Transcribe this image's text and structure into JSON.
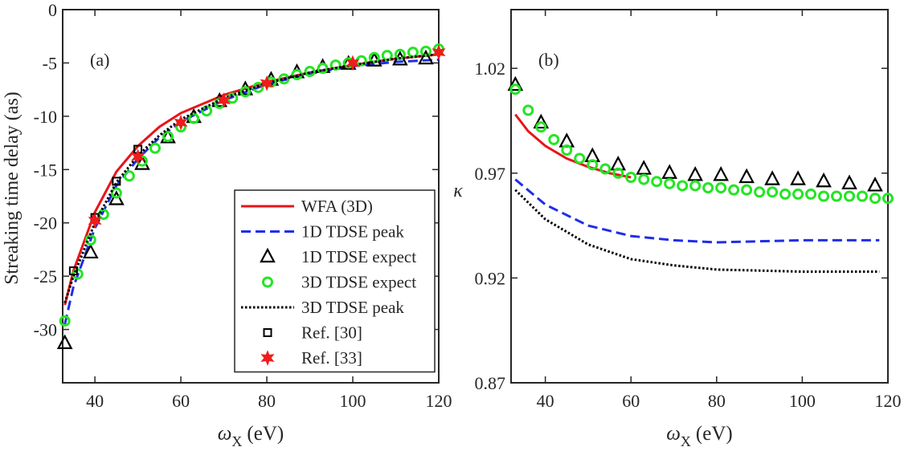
{
  "chart_data": [
    {
      "type": "line",
      "panel_label": "(a)",
      "y_label": "Streaking time delay (as)",
      "x_label_symbol": "ω",
      "x_label_subscript": "X",
      "x_label_unit": "(eV)",
      "xlim": [
        32.5,
        120
      ],
      "xticks": [
        40,
        60,
        80,
        100,
        120
      ],
      "ylim": [
        -35,
        0
      ],
      "yticks": [
        0,
        -5,
        -10,
        -15,
        -20,
        -25,
        -30
      ],
      "legend": "lower right",
      "series": [
        {
          "name": "WFA (3D)",
          "color": "#e8141b",
          "style": "solid",
          "x": [
            33,
            35,
            40,
            45,
            50,
            55,
            60,
            70,
            80,
            90,
            100,
            110,
            120
          ],
          "values": [
            -27.7,
            -24.5,
            -19.0,
            -15.2,
            -12.8,
            -11.0,
            -9.7,
            -8.0,
            -6.8,
            -5.9,
            -5.2,
            -4.6,
            -4.2
          ]
        },
        {
          "name": "1D TDSE peak",
          "color": "#1f2ee8",
          "style": "dashed",
          "x": [
            33,
            35,
            40,
            45,
            50,
            55,
            60,
            70,
            80,
            90,
            100,
            110,
            120
          ],
          "values": [
            -29.5,
            -26.0,
            -20.5,
            -16.5,
            -14.0,
            -12.0,
            -10.5,
            -8.5,
            -7.0,
            -6.0,
            -5.3,
            -4.9,
            -4.7
          ]
        },
        {
          "name": "1D TDSE expect",
          "color": "#000000",
          "style": "triangle",
          "x": [
            33,
            39,
            45,
            51,
            57,
            63,
            69,
            75,
            81,
            87,
            93,
            99,
            105,
            111,
            117
          ],
          "values": [
            -31.3,
            -22.8,
            -17.8,
            -14.5,
            -12.0,
            -10.1,
            -8.6,
            -7.5,
            -6.6,
            -5.9,
            -5.4,
            -5.1,
            -4.8,
            -4.7,
            -4.6
          ]
        },
        {
          "name": "3D TDSE expect",
          "color": "#22e622",
          "style": "circle",
          "x": [
            33,
            36,
            39,
            42,
            45,
            48,
            51,
            54,
            57,
            60,
            63,
            66,
            69,
            72,
            75,
            78,
            81,
            84,
            87,
            90,
            93,
            96,
            99,
            102,
            105,
            108,
            111,
            114,
            117,
            120
          ],
          "values": [
            -29.2,
            -24.8,
            -21.6,
            -19.2,
            -17.2,
            -15.6,
            -14.2,
            -13.0,
            -11.9,
            -11.0,
            -10.2,
            -9.5,
            -8.8,
            -8.3,
            -7.7,
            -7.3,
            -6.8,
            -6.5,
            -6.1,
            -5.8,
            -5.5,
            -5.2,
            -5.0,
            -4.8,
            -4.5,
            -4.3,
            -4.2,
            -4.0,
            -3.9,
            -3.7
          ]
        },
        {
          "name": "3D TDSE peak",
          "color": "#000000",
          "style": "dotted",
          "x": [
            33,
            35,
            40,
            45,
            50,
            55,
            60,
            70,
            80,
            90,
            100,
            110,
            120
          ],
          "values": [
            -27.5,
            -25.0,
            -20.0,
            -16.2,
            -13.7,
            -11.8,
            -10.3,
            -8.3,
            -6.9,
            -5.9,
            -5.2,
            -4.6,
            -4.2
          ]
        },
        {
          "name": "Ref. [30]",
          "color": "#000000",
          "style": "square",
          "x": [
            35,
            40,
            45,
            50
          ],
          "values": [
            -24.5,
            -19.5,
            -16.1,
            -13.1
          ]
        },
        {
          "name": "Ref. [33]",
          "color": "#f01c1c",
          "style": "star",
          "x": [
            40,
            50,
            60,
            70,
            80,
            100,
            120
          ],
          "values": [
            -19.8,
            -13.8,
            -10.6,
            -8.5,
            -6.9,
            -5.0,
            -4.0
          ]
        }
      ]
    },
    {
      "type": "line",
      "panel_label": "(b)",
      "y_label": "κ",
      "x_label_symbol": "ω",
      "x_label_subscript": "X",
      "x_label_unit": "(eV)",
      "xlim": [
        32,
        120
      ],
      "xticks": [
        40,
        60,
        80,
        100,
        120
      ],
      "ylim": [
        0.87,
        1.048
      ],
      "yticks": [
        0.87,
        0.92,
        0.97,
        1.02
      ],
      "series": [
        {
          "color": "#e8141b",
          "style": "solid",
          "x": [
            33,
            36,
            40,
            45,
            50,
            55,
            60
          ],
          "values": [
            0.998,
            0.99,
            0.983,
            0.977,
            0.973,
            0.97,
            0.968
          ]
        },
        {
          "color": "#1f2ee8",
          "style": "dashed",
          "x": [
            33,
            40,
            50,
            60,
            70,
            80,
            100,
            118
          ],
          "values": [
            0.967,
            0.955,
            0.945,
            0.94,
            0.938,
            0.937,
            0.938,
            0.938
          ]
        },
        {
          "color": "#000000",
          "style": "triangle",
          "x": [
            33,
            39,
            45,
            51,
            57,
            63,
            69,
            75,
            81,
            87,
            93,
            99,
            105,
            111,
            117
          ],
          "values": [
            1.012,
            0.994,
            0.985,
            0.978,
            0.974,
            0.972,
            0.97,
            0.969,
            0.969,
            0.968,
            0.967,
            0.967,
            0.966,
            0.965,
            0.964
          ]
        },
        {
          "color": "#22e622",
          "style": "circle",
          "x": [
            33,
            36,
            39,
            42,
            45,
            48,
            51,
            54,
            57,
            60,
            63,
            66,
            69,
            72,
            75,
            78,
            81,
            84,
            87,
            90,
            93,
            96,
            99,
            102,
            105,
            108,
            111,
            114,
            117,
            120
          ],
          "values": [
            1.01,
            1.0,
            0.992,
            0.986,
            0.981,
            0.977,
            0.974,
            0.972,
            0.97,
            0.968,
            0.967,
            0.966,
            0.965,
            0.964,
            0.964,
            0.963,
            0.963,
            0.962,
            0.962,
            0.961,
            0.961,
            0.96,
            0.96,
            0.96,
            0.959,
            0.959,
            0.959,
            0.959,
            0.958,
            0.958
          ]
        },
        {
          "color": "#000000",
          "style": "dotted",
          "x": [
            33,
            40,
            50,
            60,
            70,
            80,
            100,
            118
          ],
          "values": [
            0.962,
            0.948,
            0.936,
            0.929,
            0.926,
            0.924,
            0.923,
            0.923
          ]
        }
      ]
    }
  ]
}
